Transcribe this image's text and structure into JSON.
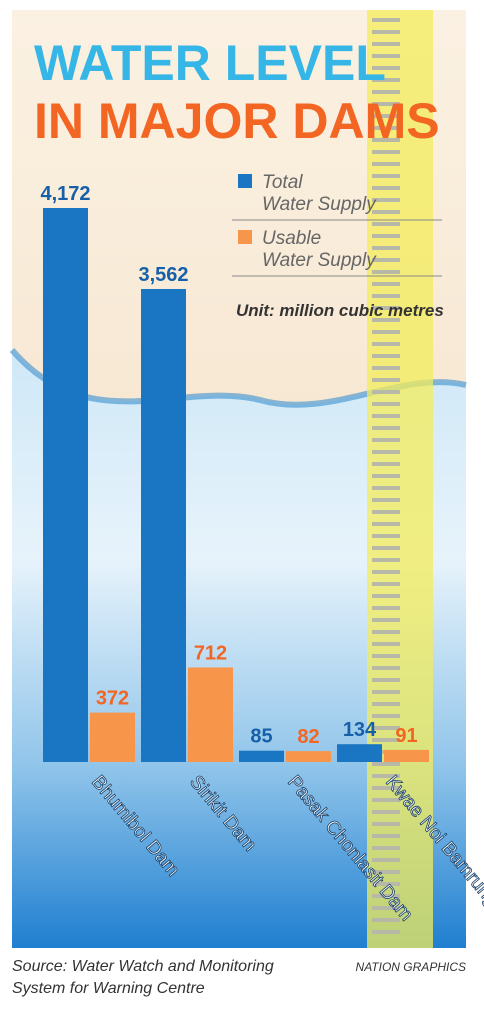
{
  "chart_data": {
    "type": "bar",
    "title": "WATER LEVEL",
    "subtitle": "IN MAJOR DAMS",
    "unit": "Unit: million cubic metres",
    "categories": [
      "Bhumibol Dam",
      "Sirikit Dam",
      "Pasak Chonlasit Dam",
      "Kwae Noi Bamrung Dan Dam"
    ],
    "series": [
      {
        "name": "Total Water Supply",
        "color": "#1a75c2",
        "values": [
          4172,
          3562,
          85,
          134
        ],
        "value_labels": [
          "4,172",
          "3,562",
          "85",
          "134"
        ]
      },
      {
        "name": "Usable Water Supply",
        "color": "#f7964a",
        "values": [
          372,
          712,
          82,
          91
        ],
        "value_labels": [
          "372",
          "712",
          "82",
          "91"
        ]
      }
    ],
    "source": "Source: Water Watch and Monitoring System for Warning Centre",
    "credit": "NATION GRAPHICS"
  }
}
